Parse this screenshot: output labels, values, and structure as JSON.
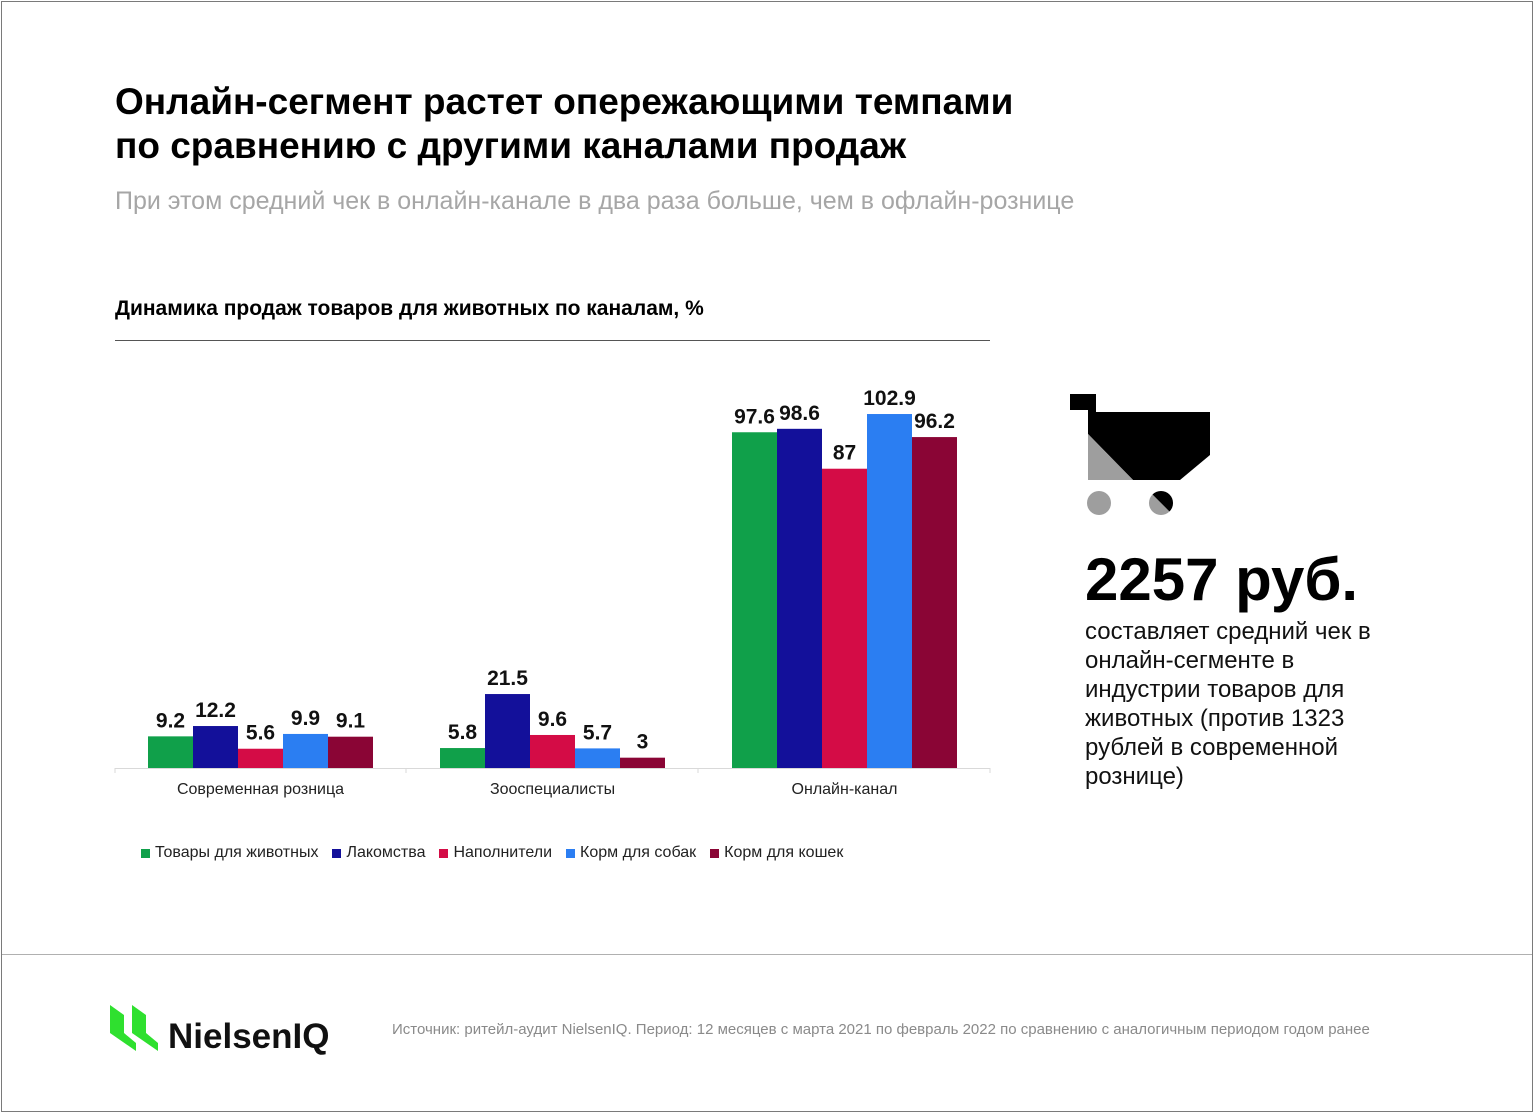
{
  "title_line1": "Онлайн-сегмент растет опережающими темпами",
  "title_line2": "по сравнению с другими каналами продаж",
  "subtitle": "При этом средний чек в онлайн-канале в два раза больше, чем в офлайн-рознице",
  "chart_heading": "Динамика продаж товаров для животных по каналам, %",
  "colors": {
    "green": "#10a04a",
    "navy": "#13109a",
    "crimson": "#d40c46",
    "blue": "#2b7ef2",
    "maroon": "#8a0535",
    "cart_black": "#000000",
    "cart_gray": "#9e9e9e",
    "logo_green": "#2fe02f"
  },
  "chart_data": {
    "type": "bar",
    "title": "Динамика продаж товаров для животных по каналам, %",
    "xlabel": "",
    "ylabel": "",
    "ylim": [
      0,
      110
    ],
    "grid": false,
    "legend_position": "bottom",
    "categories": [
      "Современная розница",
      "Зооспециалисты",
      "Онлайн-канал"
    ],
    "series": [
      {
        "name": "Товары для животных",
        "color": "#10a04a",
        "values": [
          9.2,
          5.8,
          97.6
        ],
        "labels": [
          "9.2",
          "5.8",
          "97.6"
        ]
      },
      {
        "name": "Лакомства",
        "color": "#13109a",
        "values": [
          12.2,
          21.5,
          98.6
        ],
        "labels": [
          "12.2",
          "21.5",
          "98.6"
        ]
      },
      {
        "name": "Наполнители",
        "color": "#d40c46",
        "values": [
          5.6,
          9.6,
          87
        ],
        "labels": [
          "5.6",
          "9.6",
          "87"
        ]
      },
      {
        "name": "Корм для собак",
        "color": "#2b7ef2",
        "values": [
          9.9,
          5.7,
          102.9
        ],
        "labels": [
          "9.9",
          "5.7",
          "102.9"
        ]
      },
      {
        "name": "Корм для кошек",
        "color": "#8a0535",
        "values": [
          9.1,
          3,
          96.2
        ],
        "labels": [
          "9.1",
          "3",
          "96.2"
        ]
      }
    ]
  },
  "stat": {
    "value": "2257 руб.",
    "description": "составляет средний чек в онлайн-сегменте в индустрии товаров для животных (против 1323 рублей в современной рознице)"
  },
  "footer": {
    "logo_text": "NielsenIQ",
    "source": "Источник: ритейл-аудит NielsenIQ. Период: 12 месяцев с марта 2021 по февраль 2022 по сравнению с аналогичным периодом годом ранее"
  }
}
